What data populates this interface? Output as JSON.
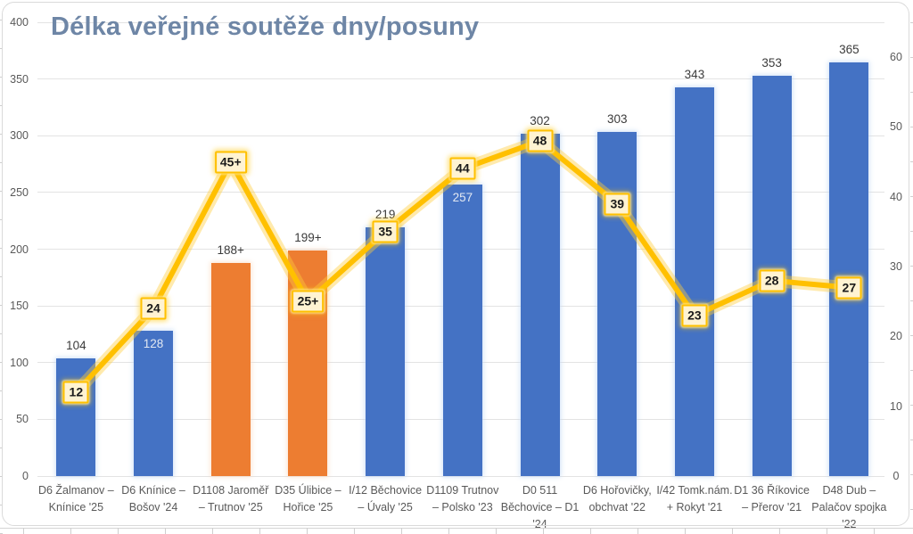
{
  "title": "Délka veřejné soutěže dny/posuny",
  "colors": {
    "title_text": "#6E86A6",
    "bar_blue": "#4472C4",
    "bar_orange": "#ED7D31",
    "line_gold": "#FFC000",
    "marker_fill": "#FFF3D2",
    "marker_border": "#FFC000",
    "gridline": "#E3E3E3",
    "axis_text": "#595959",
    "bar_label_dark": "#3B3B3B",
    "bar_label_light": "#E2E8F2"
  },
  "chart_data": {
    "type": "combo-bar-line",
    "title": "Délka veřejné soutěže dny/posuny",
    "grid": "horizontal",
    "legend": "none",
    "categories": [
      "D6 Žalmanov – Knínice '25",
      "D6 Knínice – Bošov '24",
      "D1108 Jaroměř – Trutnov '25",
      "D35 Úlibice – Hořice '25",
      "I/12 Běchovice – Úvaly '25",
      "D1109 Trutnov – Polsko '23",
      "D0 511 Běchovice – D1 '24",
      "D6 Hořovičky, obchvat '22",
      "I/42 Tomk.nám. + Rokyt '21",
      "D1 36 Říkovice – Přerov '21",
      "D48 Dub – Palačov spojka '22"
    ],
    "category_lines": [
      [
        "D6 Žalmanov –",
        "Knínice '25"
      ],
      [
        "D6 Knínice –",
        "Bošov '24"
      ],
      [
        "D1108 Jaroměř",
        "– Trutnov '25"
      ],
      [
        "D35 Úlibice –",
        "Hořice '25"
      ],
      [
        "I/12 Běchovice",
        "– Úvaly '25"
      ],
      [
        "D1109 Trutnov",
        "– Polsko '23"
      ],
      [
        "D0 511",
        "Běchovice – D1",
        "'24"
      ],
      [
        "D6 Hořovičky,",
        "obchvat '22"
      ],
      [
        "I/42 Tomk.nám.",
        "+ Rokyt '21"
      ],
      [
        "D1 36 Říkovice",
        "– Přerov '21"
      ],
      [
        "D48 Dub –",
        "Palačov spojka",
        "'22"
      ]
    ],
    "series": [
      {
        "type": "bar",
        "axis": "left",
        "values": [
          104,
          128,
          188,
          199,
          219,
          257,
          302,
          303,
          343,
          353,
          365
        ],
        "labels": [
          "104",
          "128",
          "188+",
          "199+",
          "219",
          "257",
          "302",
          "303",
          "343",
          "353",
          "365"
        ],
        "bar_colors": [
          "blue",
          "blue",
          "orange",
          "orange",
          "blue",
          "blue",
          "blue",
          "blue",
          "blue",
          "blue",
          "blue"
        ],
        "label_placement": [
          "above",
          "inside",
          "above",
          "above",
          "above",
          "inside",
          "above",
          "above",
          "above",
          "above",
          "above"
        ]
      },
      {
        "type": "line",
        "axis": "right",
        "values": [
          12,
          24,
          45,
          25,
          35,
          44,
          48,
          39,
          23,
          28,
          27
        ],
        "labels": [
          "12",
          "24",
          "45+",
          "25+",
          "35",
          "44",
          "48",
          "39",
          "23",
          "28",
          "27"
        ]
      }
    ],
    "left_axis": {
      "range": [
        0,
        400
      ],
      "tick_step": 50,
      "ticks": [
        "0",
        "50",
        "100",
        "150",
        "200",
        "250",
        "300",
        "350",
        "400"
      ]
    },
    "right_axis": {
      "range": [
        0,
        65
      ],
      "tick_step": 10,
      "ticks": [
        "0",
        "10",
        "20",
        "30",
        "40",
        "50",
        "60"
      ]
    }
  }
}
